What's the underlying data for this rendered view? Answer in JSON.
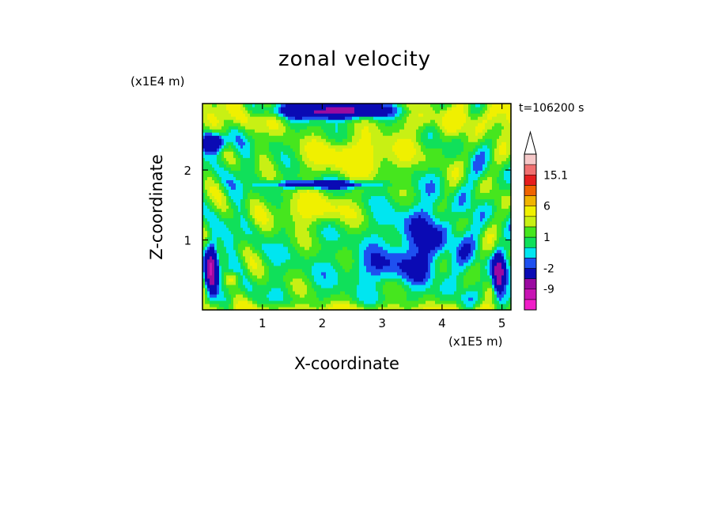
{
  "chart_data": {
    "type": "heatmap",
    "subtype": "filled contour",
    "title": "zonal velocity",
    "xlabel": "X-coordinate",
    "ylabel": "Z-coordinate",
    "x_unit": "(x1E5 m)",
    "z_unit": "(x1E4 m)",
    "time_label": "t=106200 s",
    "xlim": [
      0,
      5.15
    ],
    "ylim": [
      0,
      2.95
    ],
    "x_ticks": [
      "1",
      "2",
      "3",
      "4",
      "5"
    ],
    "y_ticks": [
      "1",
      "2"
    ],
    "x_tick_values": [
      1,
      2,
      3,
      4,
      5
    ],
    "y_tick_values": [
      1,
      2
    ],
    "colorbar": {
      "labels": [
        "15.1",
        "6",
        "1",
        "-2",
        "-9"
      ],
      "label_values": [
        15.1,
        6,
        1,
        -2,
        -9
      ],
      "levels": [
        -15,
        -12,
        -9,
        -6,
        -2,
        -1,
        0,
        1,
        2,
        3,
        6,
        9,
        12,
        15.1,
        18
      ],
      "colors": [
        "#f01ec8",
        "#c814b4",
        "#9a0aa0",
        "#0a0ab4",
        "#1e50f0",
        "#00e6f0",
        "#10e05a",
        "#46e61e",
        "#c8f014",
        "#f0f000",
        "#f0b400",
        "#f06400",
        "#e61e1e",
        "#f07070",
        "#f5c8c8"
      ],
      "extend_max": true
    },
    "field_description_values": {
      "band_velocities": [
        {
          "x": 2.6,
          "z": 2.2,
          "value": 4
        },
        {
          "x": 1.8,
          "z": 1.4,
          "value": 3
        },
        {
          "x": 2.0,
          "z": 2.8,
          "value": -8
        },
        {
          "x": 3.0,
          "z": 0.6,
          "value": -1
        },
        {
          "x": 3.8,
          "z": 1.0,
          "value": -3
        }
      ]
    }
  }
}
